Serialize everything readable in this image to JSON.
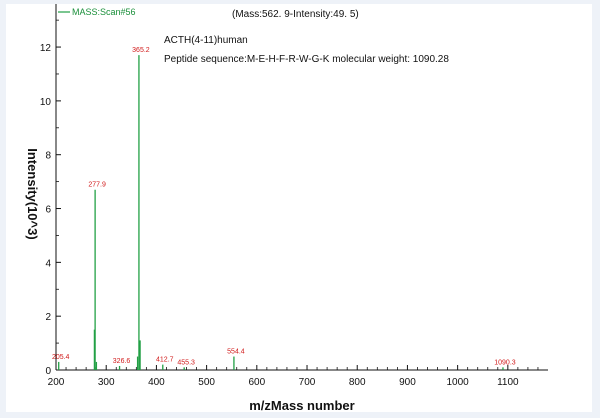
{
  "chart_data": {
    "type": "bar",
    "legend": {
      "label": "MASS:Scan#56",
      "color": "#22a045",
      "placement": "top-left"
    },
    "header_text": "(Mass:562. 9-Intensity:49. 5)",
    "annotations": [
      "ACTH(4-11)human",
      "Peptide sequence:M-E-H-F-R-W-G-K molecular weight: 1090.28"
    ],
    "xlabel": "m/zMass number",
    "ylabel": "Intensity(10^3)",
    "xlim": [
      200,
      1180
    ],
    "ylim": [
      0,
      13.6
    ],
    "xticks": [
      200,
      300,
      400,
      500,
      600,
      700,
      800,
      900,
      1000,
      1100
    ],
    "yticks": [
      0,
      2,
      4,
      6,
      8,
      10,
      12
    ],
    "grid": false,
    "peaks": [
      {
        "mz": 205.4,
        "intensity": 0.3,
        "label": "205.4"
      },
      {
        "mz": 276.5,
        "intensity": 1.5,
        "label": ""
      },
      {
        "mz": 277.9,
        "intensity": 6.7,
        "label": "277.9"
      },
      {
        "mz": 280.5,
        "intensity": 0.3,
        "label": ""
      },
      {
        "mz": 326.6,
        "intensity": 0.15,
        "label": "326.6"
      },
      {
        "mz": 362.5,
        "intensity": 0.5,
        "label": ""
      },
      {
        "mz": 365.2,
        "intensity": 11.7,
        "label": "365.2"
      },
      {
        "mz": 367.5,
        "intensity": 1.1,
        "label": ""
      },
      {
        "mz": 412.7,
        "intensity": 0.2,
        "label": "412.7"
      },
      {
        "mz": 455.3,
        "intensity": 0.1,
        "label": "455.3"
      },
      {
        "mz": 554.4,
        "intensity": 0.5,
        "label": "554.4"
      },
      {
        "mz": 1090.3,
        "intensity": 0.1,
        "label": "1090.3"
      }
    ],
    "colors": {
      "peak": "#22a045",
      "peak_label": "#d11a1a",
      "axis": "#111111"
    }
  }
}
